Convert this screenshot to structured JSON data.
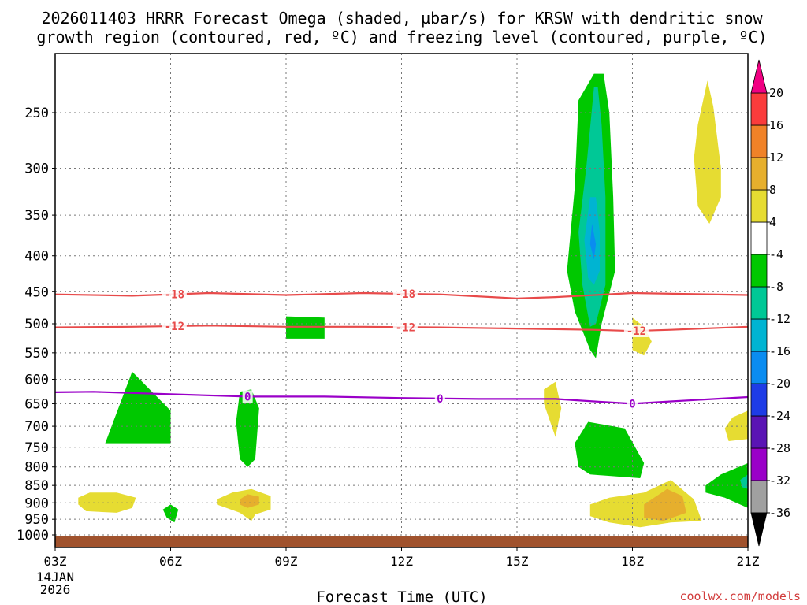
{
  "chart_data": {
    "type": "heatmap",
    "title_line1": "2026011403 HRRR Forecast Omega (shaded, µbar/s) for KRSW with dendritic snow",
    "title_line2": "growth region (contoured, red, ºC) and freezing level (contoured, purple, ºC)",
    "xlabel": "Forecast Time (UTC)",
    "ylabel": "",
    "watermark": "coolwx.com/models",
    "x_range_hours": [
      3,
      21
    ],
    "x_ticks": [
      {
        "hour": 3,
        "label": "03Z"
      },
      {
        "hour": 6,
        "label": "06Z"
      },
      {
        "hour": 9,
        "label": "09Z"
      },
      {
        "hour": 12,
        "label": "12Z"
      },
      {
        "hour": 15,
        "label": "15Z"
      },
      {
        "hour": 18,
        "label": "18Z"
      },
      {
        "hour": 21,
        "label": "21Z"
      }
    ],
    "date_label": "14JAN",
    "year_label": "2026",
    "y_axis": {
      "scale": "log-pressure",
      "range_hPa": [
        200,
        1030
      ],
      "inverted": true
    },
    "y_ticks": [
      250,
      300,
      350,
      400,
      450,
      500,
      550,
      600,
      650,
      700,
      750,
      800,
      850,
      900,
      950,
      1000
    ],
    "grid": true,
    "colorbar": {
      "levels": [
        -36,
        -32,
        -28,
        -24,
        -20,
        -16,
        -12,
        -8,
        -4,
        4,
        8,
        12,
        16,
        20
      ],
      "bands": [
        {
          "lo": -36,
          "hi": -32,
          "color": "#a0a0a0"
        },
        {
          "lo": -32,
          "hi": -28,
          "color": "#9a00c8"
        },
        {
          "lo": -28,
          "hi": -24,
          "color": "#5a14b4"
        },
        {
          "lo": -24,
          "hi": -20,
          "color": "#1e3ce6"
        },
        {
          "lo": -20,
          "hi": -16,
          "color": "#0a8cf0"
        },
        {
          "lo": -16,
          "hi": -12,
          "color": "#00b4d2"
        },
        {
          "lo": -12,
          "hi": -8,
          "color": "#00c896"
        },
        {
          "lo": -8,
          "hi": -4,
          "color": "#00c800"
        },
        {
          "lo": -4,
          "hi": 4,
          "color": "#ffffff"
        },
        {
          "lo": 4,
          "hi": 8,
          "color": "#e6dc32"
        },
        {
          "lo": 8,
          "hi": 12,
          "color": "#e6af2d"
        },
        {
          "lo": 12,
          "hi": 16,
          "color": "#f08228"
        },
        {
          "lo": 16,
          "hi": 20,
          "color": "#fa3c3c"
        }
      ],
      "over_color": "#f00082",
      "under_color": "#000000"
    },
    "omega_regions": [
      {
        "name": "upward-05z",
        "value": -6,
        "poly": [
          [
            4.3,
            740
          ],
          [
            5.0,
            585
          ],
          [
            6.0,
            665
          ],
          [
            6.0,
            740
          ]
        ]
      },
      {
        "name": "upward-06z",
        "value": -6,
        "poly": [
          [
            5.8,
            920
          ],
          [
            6.0,
            905
          ],
          [
            6.2,
            920
          ],
          [
            6.1,
            960
          ],
          [
            5.9,
            945
          ]
        ]
      },
      {
        "name": "upward-08z",
        "value": -6,
        "poly": [
          [
            7.7,
            690
          ],
          [
            7.8,
            625
          ],
          [
            8.1,
            620
          ],
          [
            8.3,
            660
          ],
          [
            8.2,
            780
          ],
          [
            8.0,
            800
          ],
          [
            7.8,
            780
          ]
        ]
      },
      {
        "name": "upward-09z",
        "value": -6,
        "poly": [
          [
            9.0,
            488
          ],
          [
            10.0,
            490
          ],
          [
            10.0,
            525
          ],
          [
            9.0,
            525
          ]
        ]
      },
      {
        "name": "upward-17z-column",
        "value": -6,
        "poly": [
          [
            17.0,
            220
          ],
          [
            16.6,
            240
          ],
          [
            16.5,
            320
          ],
          [
            16.3,
            420
          ],
          [
            16.5,
            480
          ],
          [
            16.9,
            545
          ],
          [
            17.05,
            560
          ],
          [
            17.2,
            500
          ],
          [
            17.55,
            420
          ],
          [
            17.5,
            330
          ],
          [
            17.4,
            250
          ],
          [
            17.25,
            220
          ]
        ]
      },
      {
        "name": "upward-17z-teal",
        "value": -10,
        "poly": [
          [
            17.0,
            230
          ],
          [
            16.8,
            300
          ],
          [
            16.6,
            370
          ],
          [
            16.7,
            440
          ],
          [
            16.9,
            505
          ],
          [
            17.05,
            500
          ],
          [
            17.3,
            440
          ],
          [
            17.3,
            330
          ],
          [
            17.2,
            260
          ],
          [
            17.1,
            230
          ]
        ]
      },
      {
        "name": "upward-17z-cyan",
        "value": -14,
        "poly": [
          [
            16.9,
            330
          ],
          [
            16.75,
            380
          ],
          [
            16.85,
            430
          ],
          [
            17.0,
            440
          ],
          [
            17.15,
            420
          ],
          [
            17.15,
            370
          ],
          [
            17.05,
            330
          ]
        ]
      },
      {
        "name": "upward-17z-blue",
        "value": -18,
        "poly": [
          [
            16.95,
            360
          ],
          [
            16.9,
            385
          ],
          [
            17.0,
            405
          ],
          [
            17.05,
            385
          ]
        ]
      },
      {
        "name": "upward-17z-low",
        "value": -6,
        "poly": [
          [
            16.6,
            800
          ],
          [
            16.5,
            740
          ],
          [
            16.85,
            690
          ],
          [
            17.8,
            705
          ],
          [
            18.3,
            790
          ],
          [
            18.2,
            830
          ],
          [
            16.9,
            820
          ]
        ]
      },
      {
        "name": "upward-21z",
        "value": -6,
        "poly": [
          [
            19.9,
            850
          ],
          [
            20.3,
            820
          ],
          [
            21.0,
            790
          ],
          [
            21.0,
            915
          ],
          [
            20.4,
            885
          ],
          [
            19.9,
            870
          ]
        ]
      },
      {
        "name": "upward-21z-teal",
        "value": -10,
        "poly": [
          [
            20.8,
            835
          ],
          [
            21.0,
            820
          ],
          [
            21.0,
            860
          ],
          [
            20.85,
            855
          ]
        ]
      },
      {
        "name": "sinking-04z",
        "value": 5,
        "poly": [
          [
            3.6,
            885
          ],
          [
            3.9,
            870
          ],
          [
            4.6,
            870
          ],
          [
            5.1,
            885
          ],
          [
            5.0,
            915
          ],
          [
            4.6,
            930
          ],
          [
            3.8,
            925
          ],
          [
            3.6,
            905
          ]
        ]
      },
      {
        "name": "sinking-08z",
        "value": 5,
        "poly": [
          [
            7.2,
            890
          ],
          [
            7.6,
            870
          ],
          [
            8.1,
            860
          ],
          [
            8.6,
            880
          ],
          [
            8.6,
            920
          ],
          [
            8.2,
            935
          ],
          [
            8.1,
            955
          ],
          [
            7.8,
            930
          ],
          [
            7.2,
            905
          ]
        ]
      },
      {
        "name": "sinking-08z-core",
        "value": 9,
        "poly": [
          [
            7.8,
            890
          ],
          [
            8.0,
            875
          ],
          [
            8.3,
            882
          ],
          [
            8.3,
            905
          ],
          [
            8.0,
            915
          ],
          [
            7.8,
            905
          ]
        ]
      },
      {
        "name": "sinking-16z",
        "value": 5,
        "poly": [
          [
            15.7,
            620
          ],
          [
            16.0,
            605
          ],
          [
            16.15,
            660
          ],
          [
            16.0,
            725
          ],
          [
            15.7,
            650
          ]
        ]
      },
      {
        "name": "sinking-18z-low",
        "value": 5,
        "poly": [
          [
            16.9,
            905
          ],
          [
            17.4,
            885
          ],
          [
            18.3,
            870
          ],
          [
            19.0,
            835
          ],
          [
            19.6,
            890
          ],
          [
            19.8,
            955
          ],
          [
            19.0,
            960
          ],
          [
            18.2,
            975
          ],
          [
            17.4,
            960
          ],
          [
            16.9,
            940
          ]
        ]
      },
      {
        "name": "sinking-18z-core",
        "value": 9,
        "poly": [
          [
            18.3,
            905
          ],
          [
            18.9,
            860
          ],
          [
            19.3,
            880
          ],
          [
            19.4,
            930
          ],
          [
            18.8,
            955
          ],
          [
            18.3,
            945
          ]
        ]
      },
      {
        "name": "sinking-18z-mid",
        "value": 5,
        "poly": [
          [
            18.0,
            490
          ],
          [
            18.3,
            505
          ],
          [
            18.5,
            530
          ],
          [
            18.3,
            555
          ],
          [
            18.0,
            545
          ],
          [
            18.0,
            510
          ]
        ]
      },
      {
        "name": "sinking-20z-upper",
        "value": 5,
        "poly": [
          [
            19.7,
            260
          ],
          [
            19.95,
            225
          ],
          [
            20.1,
            245
          ],
          [
            20.3,
            300
          ],
          [
            20.3,
            330
          ],
          [
            20.0,
            360
          ],
          [
            19.7,
            340
          ],
          [
            19.6,
            290
          ]
        ]
      },
      {
        "name": "sinking-21z-right",
        "value": 5,
        "poly": [
          [
            20.4,
            705
          ],
          [
            20.6,
            680
          ],
          [
            21.0,
            665
          ],
          [
            21.0,
            730
          ],
          [
            20.5,
            735
          ]
        ]
      }
    ],
    "contours": [
      {
        "name": "dgz-minus-18",
        "value": -18,
        "color": "#e84a4a",
        "label": "-18",
        "label_hours": [
          6.1,
          12.1
        ],
        "points": [
          [
            3,
            454
          ],
          [
            5,
            456
          ],
          [
            7,
            452
          ],
          [
            9,
            455
          ],
          [
            11,
            452
          ],
          [
            13,
            454
          ],
          [
            15,
            460
          ],
          [
            16,
            458
          ],
          [
            18,
            452
          ],
          [
            21,
            455
          ]
        ]
      },
      {
        "name": "dgz-minus-12",
        "value": -12,
        "color": "#e84a4a",
        "label": "-12",
        "label_hours": [
          6.1,
          12.1,
          18.1
        ],
        "points": [
          [
            3,
            506
          ],
          [
            5,
            505
          ],
          [
            7,
            503
          ],
          [
            9,
            505
          ],
          [
            11,
            505
          ],
          [
            13,
            506
          ],
          [
            15,
            508
          ],
          [
            17,
            510
          ],
          [
            18,
            512
          ],
          [
            19,
            510
          ],
          [
            21,
            505
          ]
        ]
      },
      {
        "name": "freezing-level",
        "value": 0,
        "color": "#9a00c8",
        "label": "0",
        "label_hours": [
          8.0,
          13.0,
          18.0
        ],
        "points": [
          [
            3,
            626
          ],
          [
            4,
            625
          ],
          [
            6,
            630
          ],
          [
            8,
            635
          ],
          [
            10,
            635
          ],
          [
            12,
            638
          ],
          [
            14,
            640
          ],
          [
            16,
            640
          ],
          [
            17,
            645
          ],
          [
            18,
            650
          ],
          [
            19,
            645
          ],
          [
            21,
            636
          ]
        ]
      }
    ]
  }
}
